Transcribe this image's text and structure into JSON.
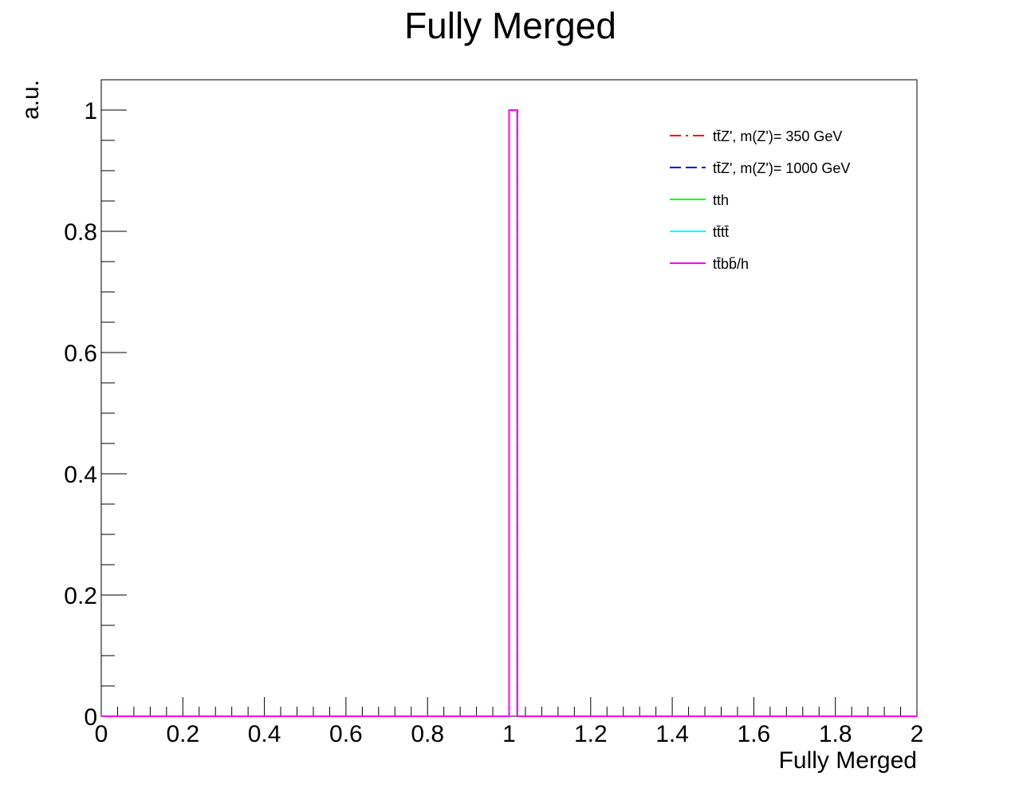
{
  "chart_data": {
    "type": "histogram",
    "title": "Fully Merged",
    "xlabel": "Fully Merged",
    "ylabel": "a.u.",
    "xlim": [
      0,
      2
    ],
    "ylim": [
      0,
      1.05
    ],
    "x_ticks": [
      "0",
      "0.2",
      "0.4",
      "0.6",
      "0.8",
      "1",
      "1.2",
      "1.4",
      "1.6",
      "1.8",
      "2"
    ],
    "y_ticks": [
      "0",
      "0.2",
      "0.4",
      "0.6",
      "0.8",
      "1"
    ],
    "bin_width": 0.02,
    "grid": false,
    "legend_position": "top-right",
    "series": [
      {
        "name": "tt̄Z', m(Z')= 350 GeV",
        "color": "#ff0000",
        "line_style": "dash-dot",
        "bins": [
          {
            "x_low": 1.0,
            "x_high": 1.02,
            "value": 1.0
          }
        ]
      },
      {
        "name": "tt̄Z', m(Z')= 1000 GeV",
        "color": "#0000ff",
        "line_style": "dashed",
        "bins": [
          {
            "x_low": 1.0,
            "x_high": 1.02,
            "value": 1.0
          }
        ]
      },
      {
        "name": "tth",
        "color": "#00ff00",
        "line_style": "solid",
        "bins": [
          {
            "x_low": 1.0,
            "x_high": 1.02,
            "value": 1.0
          }
        ]
      },
      {
        "name": "tt̄tt̄",
        "color": "#00ffff",
        "line_style": "solid",
        "bins": [
          {
            "x_low": 1.0,
            "x_high": 1.02,
            "value": 1.0
          }
        ]
      },
      {
        "name": "tt̄bb̄/h",
        "color": "#ff00ff",
        "line_style": "solid",
        "bins": [
          {
            "x_low": 1.0,
            "x_high": 1.02,
            "value": 1.0
          }
        ]
      }
    ]
  }
}
